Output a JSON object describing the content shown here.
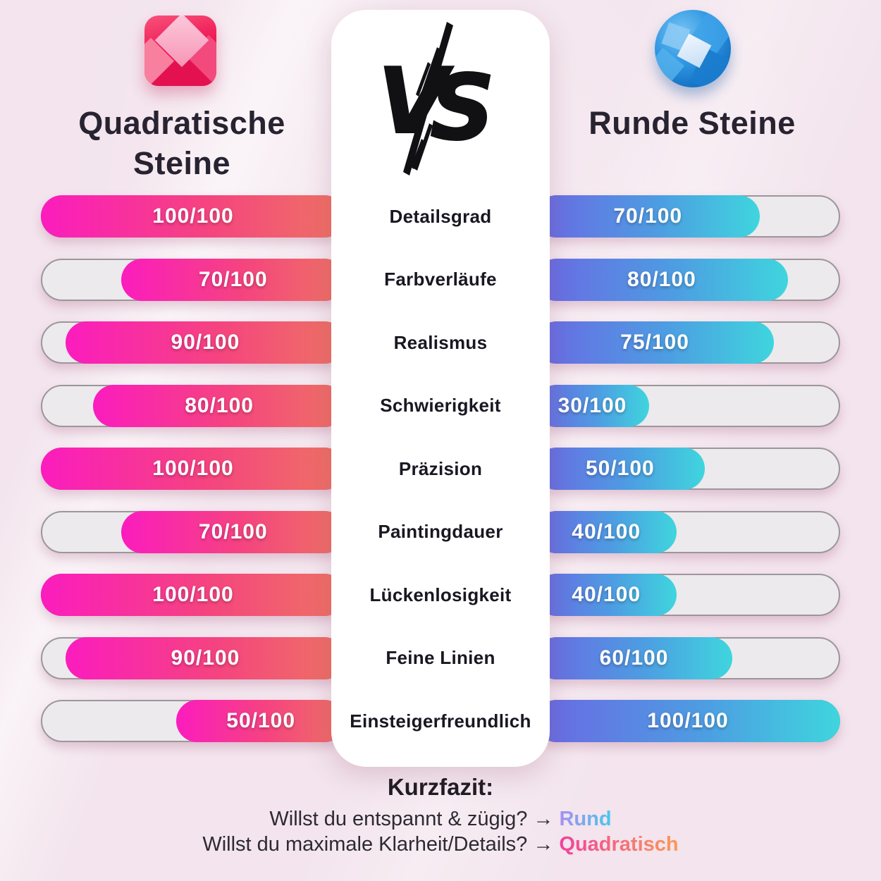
{
  "left_column": {
    "title": "Quadratische Steine",
    "icon": "square-gem-icon"
  },
  "right_column": {
    "title": "Runde Steine",
    "icon": "round-gem-icon"
  },
  "vs_badge": "VS",
  "rows": [
    {
      "label": "Detailsgrad",
      "left_score": "100/100",
      "left_value": 100,
      "right_score": "70/100",
      "right_value": 70
    },
    {
      "label": "Farbverläufe",
      "left_score": "70/100",
      "left_value": 70,
      "right_score": "80/100",
      "right_value": 80
    },
    {
      "label": "Realismus",
      "left_score": "90/100",
      "left_value": 90,
      "right_score": "75/100",
      "right_value": 75
    },
    {
      "label": "Schwierigkeit",
      "left_score": "80/100",
      "left_value": 80,
      "right_score": "30/100",
      "right_value": 30
    },
    {
      "label": "Präzision",
      "left_score": "100/100",
      "left_value": 100,
      "right_score": "50/100",
      "right_value": 50
    },
    {
      "label": "Paintingdauer",
      "left_score": "70/100",
      "left_value": 70,
      "right_score": "40/100",
      "right_value": 40
    },
    {
      "label": "Lückenlosigkeit",
      "left_score": "100/100",
      "left_value": 100,
      "right_score": "40/100",
      "right_value": 40
    },
    {
      "label": "Feine Linien",
      "left_score": "90/100",
      "left_value": 90,
      "right_score": "60/100",
      "right_value": 60
    },
    {
      "label": "Einsteigerfreundlich",
      "left_score": "50/100",
      "left_value": 50,
      "right_score": "100/100",
      "right_value": 100
    }
  ],
  "footer": {
    "heading": "Kurzfazit:",
    "line1_text": "Willst du entspannt & zügig? →",
    "line1_highlight": "Rund",
    "line2_text": "Willst du maximale Klarheit/Details? →",
    "line2_highlight": "Quadratisch"
  },
  "colors": {
    "background": "#f3e4ed",
    "left_fill_start": "#fb1cbe",
    "left_fill_end": "#ee7463",
    "right_fill_start": "#6b68e4",
    "right_fill_end": "#3fd5de",
    "track": "#eceaec",
    "track_border": "#9b979b",
    "heading_text": "#272331",
    "rund_gradient": [
      "#a78ff0",
      "#49c6ee"
    ],
    "quadratisch_gradient": [
      "#f0419d",
      "#fa9a58"
    ]
  },
  "chart_data": {
    "type": "bar",
    "title": "Quadratische Steine VS Runde Steine",
    "categories": [
      "Detailsgrad",
      "Farbverläufe",
      "Realismus",
      "Schwierigkeit",
      "Präzision",
      "Paintingdauer",
      "Lückenlosigkeit",
      "Feine Linien",
      "Einsteigerfreundlich"
    ],
    "series": [
      {
        "name": "Quadratische Steine",
        "values": [
          100,
          70,
          90,
          80,
          100,
          70,
          100,
          90,
          50
        ]
      },
      {
        "name": "Runde Steine",
        "values": [
          70,
          80,
          75,
          30,
          50,
          40,
          40,
          60,
          100
        ]
      }
    ],
    "value_format": "n/100",
    "xlim": [
      0,
      100
    ],
    "orientation": "horizontal",
    "legend_position": "top"
  }
}
